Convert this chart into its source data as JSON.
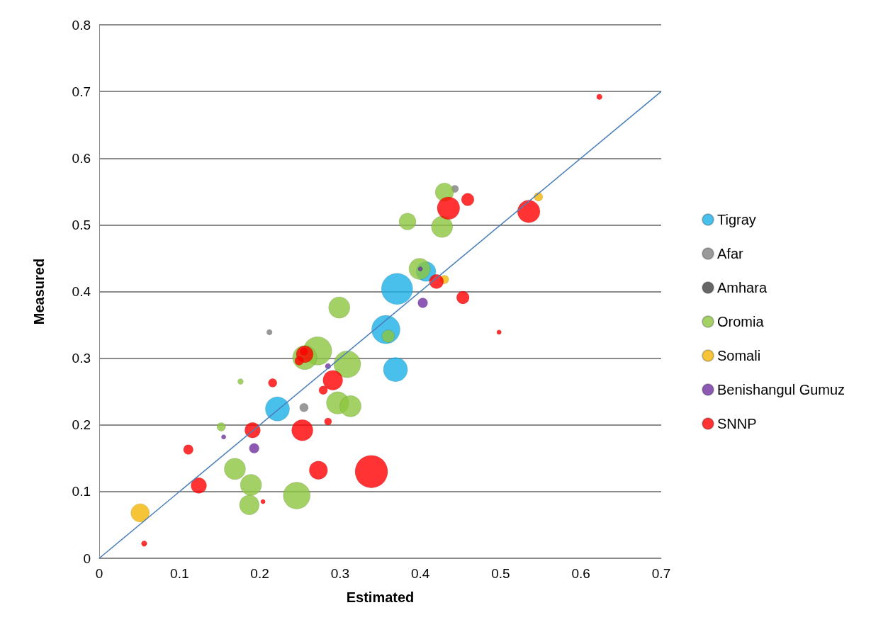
{
  "chart_data": {
    "type": "bubble",
    "xlabel": "Estimated",
    "ylabel": "Measured",
    "xlim": [
      0,
      0.7
    ],
    "ylim": [
      0,
      0.8
    ],
    "xticks": [
      0,
      0.1,
      0.2,
      0.3,
      0.4,
      0.5,
      0.6,
      0.7
    ],
    "yticks": [
      0,
      0.1,
      0.2,
      0.3,
      0.4,
      0.5,
      0.6,
      0.7,
      0.8
    ],
    "grid": "y",
    "legend": "right",
    "series": [
      {
        "name": "Tigray",
        "color": "#1ab0e6",
        "x": [
          0.371,
          0.357,
          0.369,
          0.222,
          0.407
        ],
        "values": [
          0.404,
          0.343,
          0.283,
          0.224,
          0.43
        ],
        "sizes": [
          0.92,
          0.76,
          0.55,
          0.55,
          0.37
        ]
      },
      {
        "name": "Afar",
        "color": "#7f7f7f",
        "x": [
          0.212,
          0.255,
          0.443
        ],
        "values": [
          0.339,
          0.226,
          0.554
        ],
        "sizes": [
          0.03,
          0.07,
          0.05
        ]
      },
      {
        "name": "Amhara",
        "color": "#404040"
      },
      {
        "name": "Oromia",
        "color": "#8cc63f",
        "x": [
          0.43,
          0.384,
          0.427,
          0.399,
          0.299,
          0.36,
          0.272,
          0.256,
          0.309,
          0.176,
          0.152,
          0.297,
          0.313,
          0.169,
          0.189,
          0.187,
          0.246
        ],
        "values": [
          0.549,
          0.505,
          0.497,
          0.434,
          0.376,
          0.333,
          0.311,
          0.301,
          0.291,
          0.265,
          0.197,
          0.233,
          0.228,
          0.134,
          0.11,
          0.08,
          0.094
        ],
        "sizes": [
          0.32,
          0.27,
          0.43,
          0.43,
          0.43,
          0.15,
          0.76,
          0.55,
          0.68,
          0.03,
          0.07,
          0.48,
          0.43,
          0.43,
          0.43,
          0.37,
          0.68
        ]
      },
      {
        "name": "Somali",
        "color": "#f2b705",
        "x": [
          0.051,
          0.43,
          0.547
        ],
        "values": [
          0.068,
          0.418,
          0.542
        ],
        "sizes": [
          0.32,
          0.07,
          0.07
        ]
      },
      {
        "name": "Benishangul Gumuz",
        "color": "#7030a0",
        "x": [
          0.4,
          0.403,
          0.285,
          0.155,
          0.193
        ],
        "values": [
          0.434,
          0.383,
          0.288,
          0.182,
          0.165
        ],
        "sizes": [
          0.02,
          0.09,
          0.03,
          0.02,
          0.09
        ]
      },
      {
        "name": "SNNP",
        "color": "#ff0000",
        "x": [
          0.623,
          0.459,
          0.435,
          0.535,
          0.42,
          0.453,
          0.498,
          0.256,
          0.255,
          0.249,
          0.291,
          0.279,
          0.216,
          0.285,
          0.253,
          0.191,
          0.111,
          0.273,
          0.339,
          0.124,
          0.204,
          0.056
        ],
        "values": [
          0.692,
          0.538,
          0.525,
          0.52,
          0.415,
          0.391,
          0.339,
          0.306,
          0.31,
          0.296,
          0.267,
          0.252,
          0.263,
          0.205,
          0.192,
          0.192,
          0.163,
          0.132,
          0.13,
          0.109,
          0.085,
          0.022
        ],
        "sizes": [
          0.03,
          0.15,
          0.48,
          0.48,
          0.19,
          0.15,
          0.02,
          0.27,
          0.05,
          0.07,
          0.37,
          0.07,
          0.07,
          0.05,
          0.43,
          0.23,
          0.09,
          0.32,
          1,
          0.23,
          0.02,
          0.03
        ]
      },
      {
        "type": "line",
        "color": "#4a7ebb",
        "x": [
          0,
          0.7
        ],
        "values": [
          0,
          0.7
        ],
        "marker": "none",
        "line_style": "solid"
      }
    ]
  }
}
